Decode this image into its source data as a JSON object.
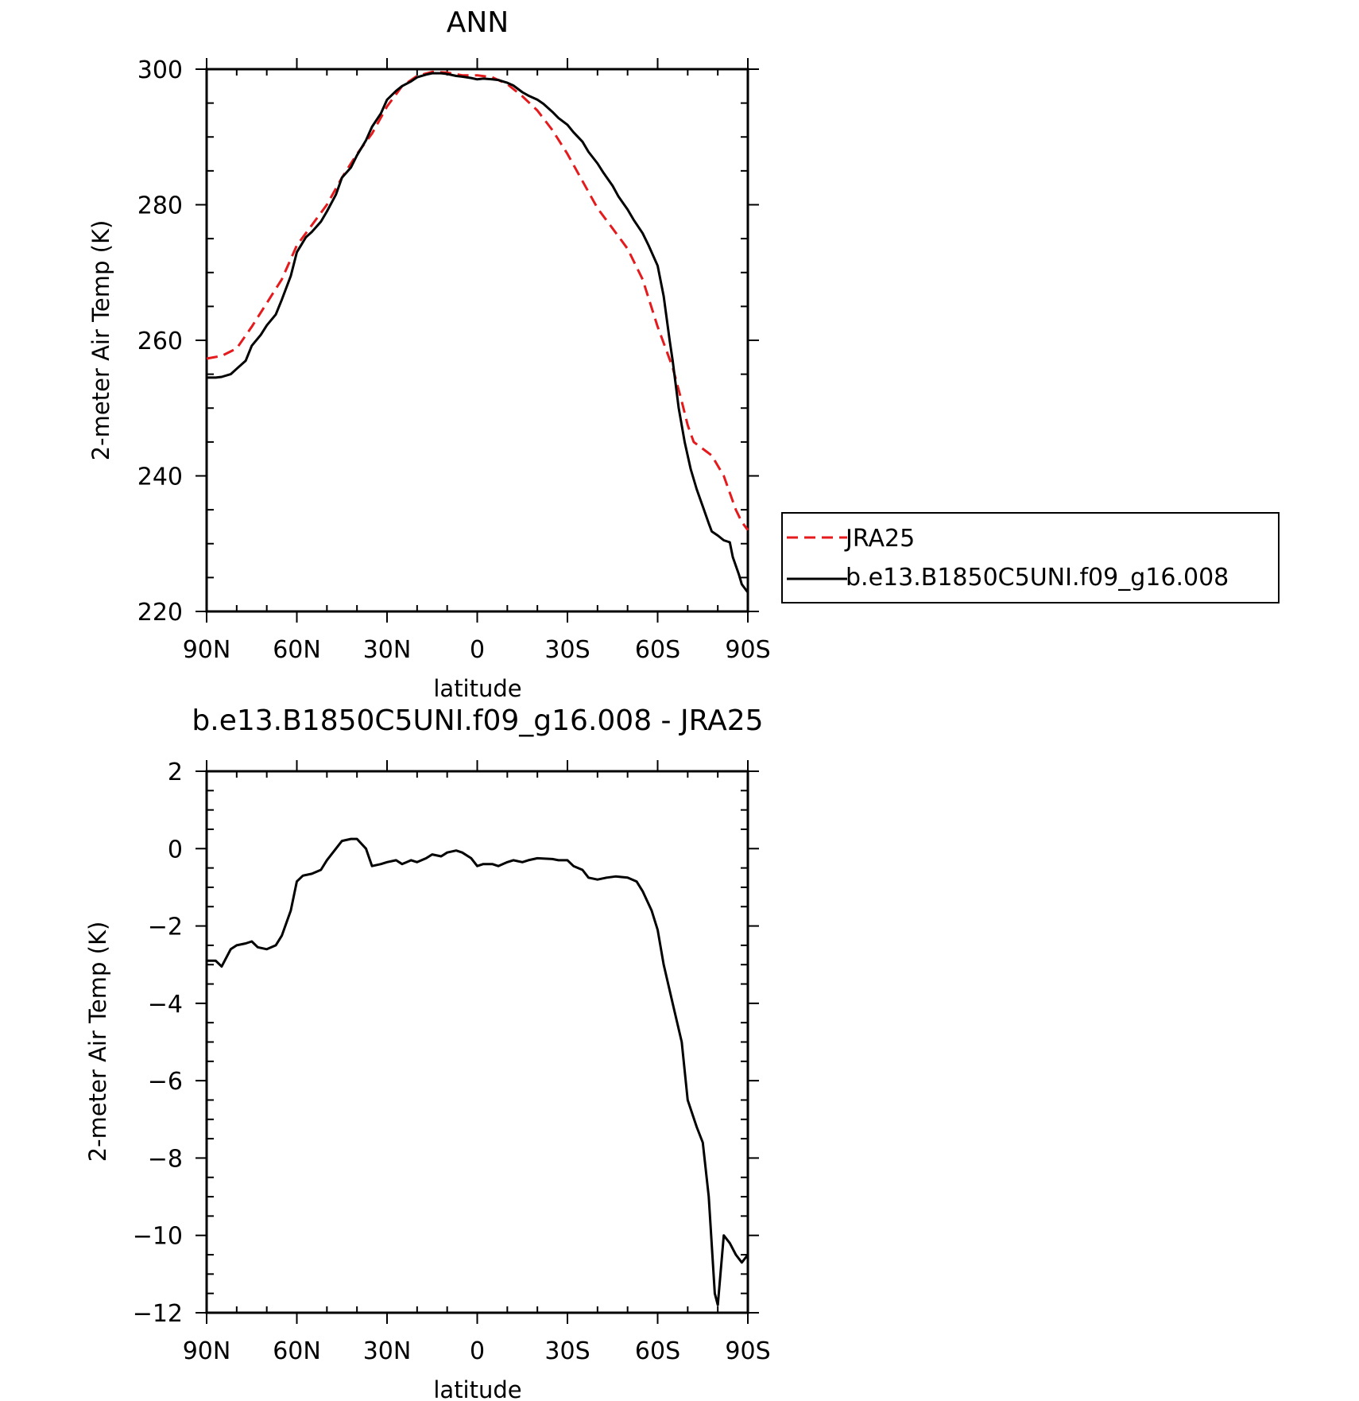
{
  "colors": {
    "jra25": "#e41a1c",
    "model": "#000000",
    "axes": "#000000"
  },
  "chart_data": [
    {
      "type": "line",
      "title": "ANN",
      "xlabel": "latitude",
      "ylabel": "2-meter Air Temp (K)",
      "xlim": [
        90,
        -90
      ],
      "ylim": [
        220,
        300
      ],
      "x_ticks": [
        90,
        60,
        30,
        0,
        -30,
        -60,
        -90
      ],
      "x_tick_labels": [
        "90N",
        "60N",
        "30N",
        "0",
        "30S",
        "60S",
        "90S"
      ],
      "y_ticks": [
        220,
        240,
        260,
        280,
        300
      ],
      "y_tick_labels": [
        "220",
        "240",
        "260",
        "280",
        "300"
      ],
      "legend": "right, outside plot",
      "series": [
        {
          "name": "JRA25",
          "style": "dashed",
          "color": "#e41a1c",
          "x": [
            90,
            85,
            80,
            75,
            70,
            65,
            60,
            55,
            50,
            45,
            40,
            35,
            30,
            25,
            20,
            15,
            10,
            5,
            0,
            -5,
            -10,
            -15,
            -20,
            -25,
            -30,
            -35,
            -40,
            -45,
            -50,
            -55,
            -60,
            -65,
            -68,
            -70,
            -72,
            -75,
            -78,
            -82,
            -84,
            -86,
            -88,
            -90
          ],
          "values": [
            257.3,
            257.7,
            258.8,
            262.0,
            265.5,
            269.0,
            274.0,
            277.0,
            280.0,
            284.0,
            287.5,
            290.5,
            294.5,
            297.5,
            299.0,
            299.6,
            299.5,
            299.1,
            299.1,
            298.8,
            297.8,
            296.0,
            293.9,
            291.0,
            287.5,
            283.5,
            279.5,
            276.5,
            273.5,
            269.0,
            262.0,
            256.0,
            251.0,
            247.5,
            245.0,
            244.0,
            243.0,
            240.0,
            237.5,
            235.0,
            233.2,
            232.0
          ]
        },
        {
          "name": "b.e13.B1850C5UNI.f09_g16.008",
          "style": "solid",
          "color": "#000000",
          "x": [
            90,
            87,
            85,
            82,
            80,
            77,
            75,
            72,
            70,
            67,
            65,
            62,
            60,
            57,
            55,
            52,
            50,
            47,
            45,
            42,
            40,
            37,
            35,
            32,
            30,
            27,
            25,
            22,
            20,
            17,
            15,
            12,
            10,
            7,
            5,
            2,
            0,
            -2,
            -5,
            -7,
            -10,
            -12,
            -15,
            -17,
            -20,
            -22,
            -25,
            -27,
            -30,
            -32,
            -35,
            -37,
            -40,
            -42,
            -45,
            -47,
            -50,
            -52,
            -55,
            -57,
            -60,
            -62,
            -64,
            -65,
            -67,
            -69,
            -71,
            -73,
            -75,
            -77,
            -78,
            -80,
            -82,
            -84,
            -85,
            -87,
            -88,
            -90
          ],
          "values": [
            254.5,
            254.5,
            254.6,
            255.0,
            255.8,
            257.0,
            259.2,
            260.8,
            262.2,
            263.8,
            266.0,
            269.5,
            273.0,
            275.2,
            276.0,
            277.5,
            279.0,
            281.5,
            284.0,
            285.5,
            287.3,
            289.5,
            291.5,
            293.5,
            295.5,
            296.8,
            297.5,
            298.2,
            298.8,
            299.2,
            299.4,
            299.4,
            299.3,
            299.0,
            298.9,
            298.7,
            298.5,
            298.6,
            298.5,
            298.4,
            298.0,
            297.6,
            296.6,
            296.1,
            295.5,
            294.9,
            293.7,
            292.8,
            291.8,
            290.7,
            289.3,
            287.8,
            286.1,
            284.7,
            282.8,
            281.2,
            279.3,
            277.8,
            275.8,
            274.0,
            271.0,
            266.5,
            260.0,
            257.0,
            250.0,
            245.0,
            241.0,
            238.0,
            235.5,
            233.0,
            231.8,
            231.2,
            230.5,
            230.2,
            228.0,
            225.5,
            224.0,
            222.8
          ]
        }
      ]
    },
    {
      "type": "line",
      "title": "b.e13.B1850C5UNI.f09_g16.008 - JRA25",
      "xlabel": "latitude",
      "ylabel": "2-meter Air Temp (K)",
      "xlim": [
        90,
        -90
      ],
      "ylim": [
        -12,
        2
      ],
      "x_ticks": [
        90,
        60,
        30,
        0,
        -30,
        -60,
        -90
      ],
      "x_tick_labels": [
        "90N",
        "60N",
        "30N",
        "0",
        "30S",
        "60S",
        "90S"
      ],
      "y_ticks": [
        2,
        0,
        -2,
        -4,
        -6,
        -8,
        -10,
        -12
      ],
      "y_tick_labels": [
        "2",
        "0",
        "−2",
        "−4",
        "−6",
        "−8",
        "−10",
        "−12"
      ],
      "series": [
        {
          "color": "#000000",
          "style": "solid",
          "x": [
            90,
            87,
            85,
            82,
            80,
            77,
            75,
            73,
            70,
            67,
            65,
            62,
            60,
            58,
            55,
            52,
            50,
            47,
            45,
            42,
            40,
            37,
            35,
            32,
            30,
            27,
            25,
            22,
            20,
            17,
            15,
            12,
            10,
            7,
            5,
            2,
            0,
            -2,
            -5,
            -7,
            -10,
            -12,
            -15,
            -17,
            -20,
            -25,
            -27,
            -30,
            -32,
            -35,
            -37,
            -40,
            -43,
            -46,
            -50,
            -53,
            -55,
            -58,
            -60,
            -62,
            -65,
            -68,
            -70,
            -73,
            -75,
            -77,
            -79,
            -80,
            -82,
            -84,
            -86,
            -88,
            -90
          ],
          "values": [
            -2.9,
            -2.9,
            -3.05,
            -2.6,
            -2.5,
            -2.45,
            -2.4,
            -2.55,
            -2.6,
            -2.5,
            -2.25,
            -1.6,
            -0.85,
            -0.7,
            -0.65,
            -0.55,
            -0.3,
            0.0,
            0.2,
            0.25,
            0.25,
            0.0,
            -0.45,
            -0.4,
            -0.35,
            -0.3,
            -0.4,
            -0.3,
            -0.35,
            -0.25,
            -0.15,
            -0.2,
            -0.1,
            -0.05,
            -0.1,
            -0.25,
            -0.45,
            -0.4,
            -0.4,
            -0.45,
            -0.35,
            -0.3,
            -0.35,
            -0.3,
            -0.25,
            -0.27,
            -0.3,
            -0.3,
            -0.45,
            -0.55,
            -0.75,
            -0.8,
            -0.75,
            -0.72,
            -0.75,
            -0.85,
            -1.1,
            -1.6,
            -2.1,
            -3.0,
            -4.0,
            -5.0,
            -6.5,
            -7.2,
            -7.6,
            -9.0,
            -11.5,
            -11.8,
            -10.0,
            -10.2,
            -10.5,
            -10.7,
            -10.5
          ]
        }
      ]
    }
  ]
}
